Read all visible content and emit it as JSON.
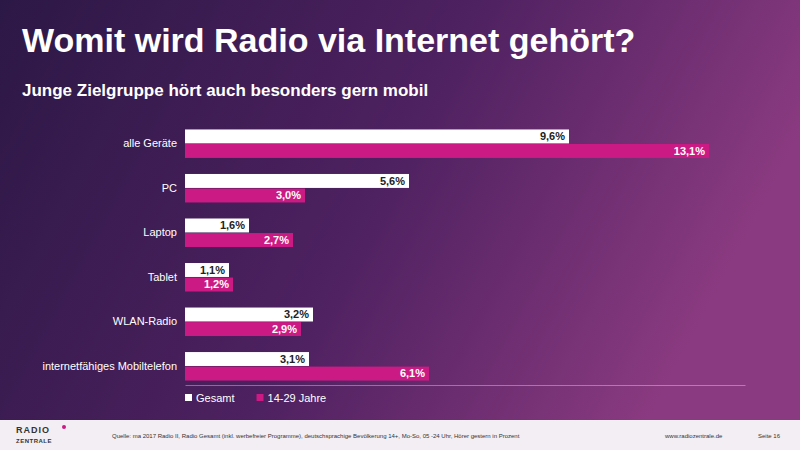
{
  "chart_data": {
    "type": "bar",
    "orientation": "horizontal",
    "title": "Womit wird Radio via Internet gehört?",
    "subtitle": "Junge Zielgruppe hört auch besonders gern mobil",
    "categories": [
      "alle Geräte",
      "PC",
      "Laptop",
      "Tablet",
      "WLAN-Radio",
      "internetfähiges Mobiltelefon"
    ],
    "series": [
      {
        "name": "Gesamt",
        "color": "#ffffff",
        "values": [
          9.6,
          5.6,
          1.6,
          1.1,
          3.2,
          3.1
        ],
        "value_labels": [
          "9,6%",
          "5,6%",
          "1,6%",
          "1,1%",
          "3,2%",
          "3,1%"
        ]
      },
      {
        "name": "14-29 Jahre",
        "color": "#cc1a85",
        "values": [
          13.1,
          3.0,
          2.7,
          1.2,
          2.9,
          6.1
        ],
        "value_labels": [
          "13,1%",
          "3,0%",
          "2,7%",
          "1,2%",
          "2,9%",
          "6,1%"
        ]
      }
    ],
    "xlim": [
      0,
      14
    ],
    "tick_labels": false,
    "grid": false,
    "data_labels": true,
    "legend": "bottom",
    "source": "Quelle: ma 2017 Radio II, Radio Gesamt (inkl. werbefreier Programme), deutschsprachige Bevölkerung 14+, Mo-So, 05 -24 Uhr, Hörer gestern in Prozent",
    "website": "www.radiozentrale.de",
    "page": "Seite 16",
    "logo": [
      "RADIO",
      "ZENTRALE"
    ]
  }
}
